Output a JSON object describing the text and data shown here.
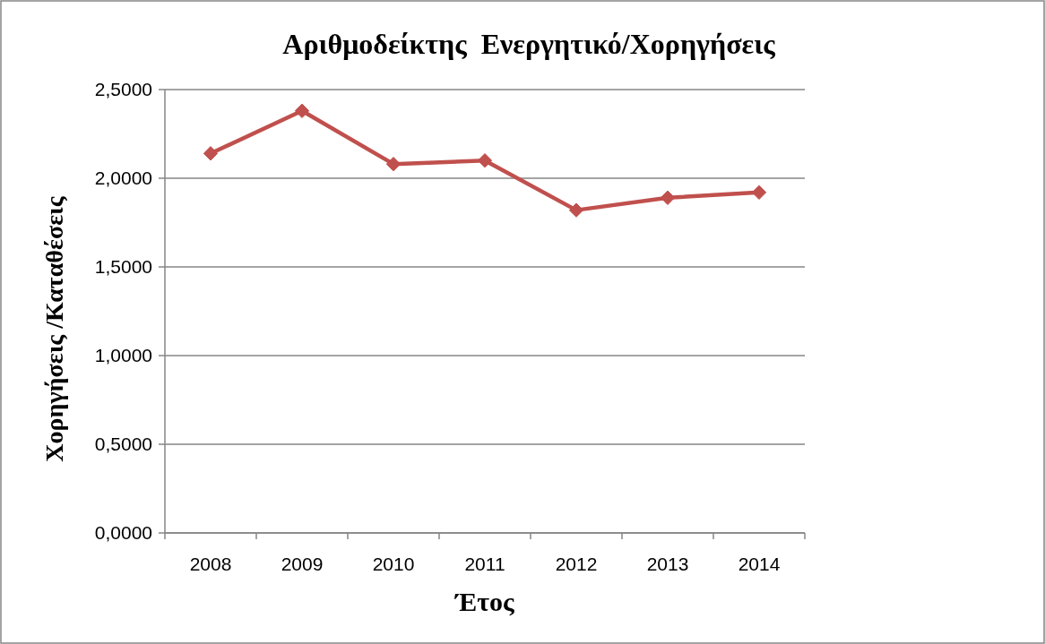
{
  "chart_data": {
    "type": "line",
    "title": "Αριθμοδείκτης  Ενεργητικό/Χορηγήσεις",
    "xlabel": "Έτος",
    "ylabel": "Χορηγήσεις /Καταθέσεις",
    "categories": [
      "2008",
      "2009",
      "2010",
      "2011",
      "2012",
      "2013",
      "2014"
    ],
    "series": [
      {
        "color": "#c0504d",
        "values": [
          2.14,
          2.38,
          2.08,
          2.1,
          1.82,
          1.89,
          1.92
        ]
      }
    ],
    "ylim": [
      0,
      2.5
    ],
    "yticks": [
      {
        "value": 0,
        "label": "0,0000"
      },
      {
        "value": 0.5,
        "label": "0,5000"
      },
      {
        "value": 1,
        "label": "1,0000"
      },
      {
        "value": 1.5,
        "label": "1,5000"
      },
      {
        "value": 2,
        "label": "2,0000"
      },
      {
        "value": 2.5,
        "label": "2,5000"
      }
    ],
    "grid": "y",
    "marker": "diamond",
    "line_style": "solid"
  }
}
